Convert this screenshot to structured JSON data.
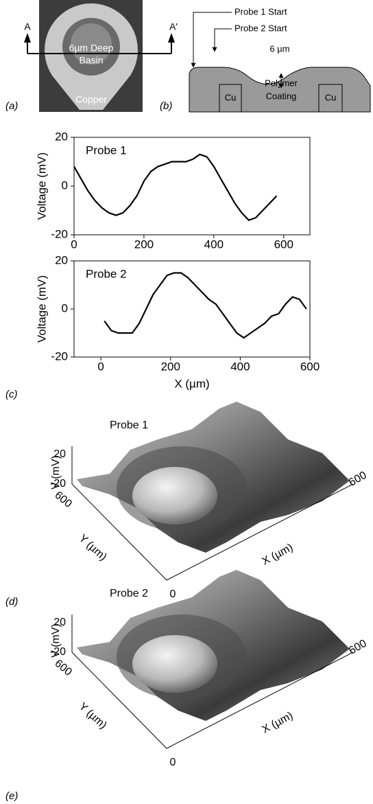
{
  "figure": {
    "panel_labels": [
      "(a)",
      "(b)",
      "(c)",
      "(d)",
      "(e)"
    ],
    "panel_a": {
      "left_marker": "A",
      "right_marker": "A'",
      "basin_label": [
        "6µm Deep",
        "Basin"
      ],
      "copper_label": "Copper"
    },
    "panel_b": {
      "probe1_start": "Probe 1 Start",
      "probe2_start": "Probe 2 Start",
      "depth": "6 µm",
      "cu_left": "Cu",
      "coating": [
        "Polymer",
        "Coating"
      ],
      "cu_right": "Cu"
    },
    "panel_d": {
      "title": "Probe 1",
      "z_label": "V (mV)",
      "z_ticks": [
        20,
        -20
      ],
      "y_label": "Y (µm)",
      "y_tick": 600,
      "x_label": "X (µm)",
      "x_tick": 600,
      "origin": 0
    },
    "panel_e": {
      "title": "Probe 2",
      "z_label": "V (mV)",
      "z_ticks": [
        20,
        -20
      ],
      "y_label": "Y (µm)",
      "y_tick": 600,
      "x_label": "X (µm)",
      "x_tick": 600,
      "origin": 0
    }
  },
  "chart_data": [
    {
      "type": "line",
      "title": "Probe 1",
      "ylabel": "Voltage (mV)",
      "x": [
        0,
        20,
        40,
        60,
        80,
        100,
        120,
        140,
        160,
        180,
        200,
        220,
        240,
        260,
        280,
        300,
        320,
        340,
        360,
        380,
        400,
        420,
        440,
        460,
        480,
        500,
        520,
        540,
        560,
        580
      ],
      "series": [
        {
          "color": "#000000",
          "values": [
            8,
            3,
            -2,
            -6,
            -9,
            -11,
            -12,
            -11,
            -8,
            -4,
            2,
            6,
            8,
            9,
            10,
            10,
            10,
            11,
            13,
            12,
            8,
            3,
            -2,
            -7,
            -11,
            -14,
            -13,
            -10,
            -7,
            -4
          ]
        }
      ],
      "xlim": [
        0,
        675
      ],
      "xticks": [
        0,
        200,
        400,
        600
      ],
      "ylim": [
        -20,
        20
      ],
      "yticks": [
        -20,
        0,
        20
      ]
    },
    {
      "type": "line",
      "title": "Probe 2",
      "ylabel": "Voltage (mV)",
      "xlabel": "X (µm)",
      "x": [
        10,
        30,
        50,
        70,
        90,
        110,
        130,
        150,
        170,
        190,
        210,
        230,
        250,
        270,
        290,
        310,
        330,
        350,
        370,
        390,
        410,
        430,
        450,
        470,
        490,
        510,
        530,
        550,
        570,
        590
      ],
      "series": [
        {
          "color": "#000000",
          "values": [
            -5,
            -9,
            -10,
            -10,
            -10,
            -6,
            0,
            6,
            10,
            14,
            15,
            15,
            13,
            10,
            7,
            4,
            2,
            -2,
            -6,
            -10,
            -12,
            -10,
            -8,
            -6,
            -3,
            -2,
            2,
            5,
            4,
            0
          ]
        }
      ],
      "xlim": [
        -77,
        600
      ],
      "xticks": [
        0,
        200,
        400,
        600
      ],
      "ylim": [
        -20,
        20
      ],
      "yticks": [
        -20,
        0,
        20
      ]
    }
  ]
}
